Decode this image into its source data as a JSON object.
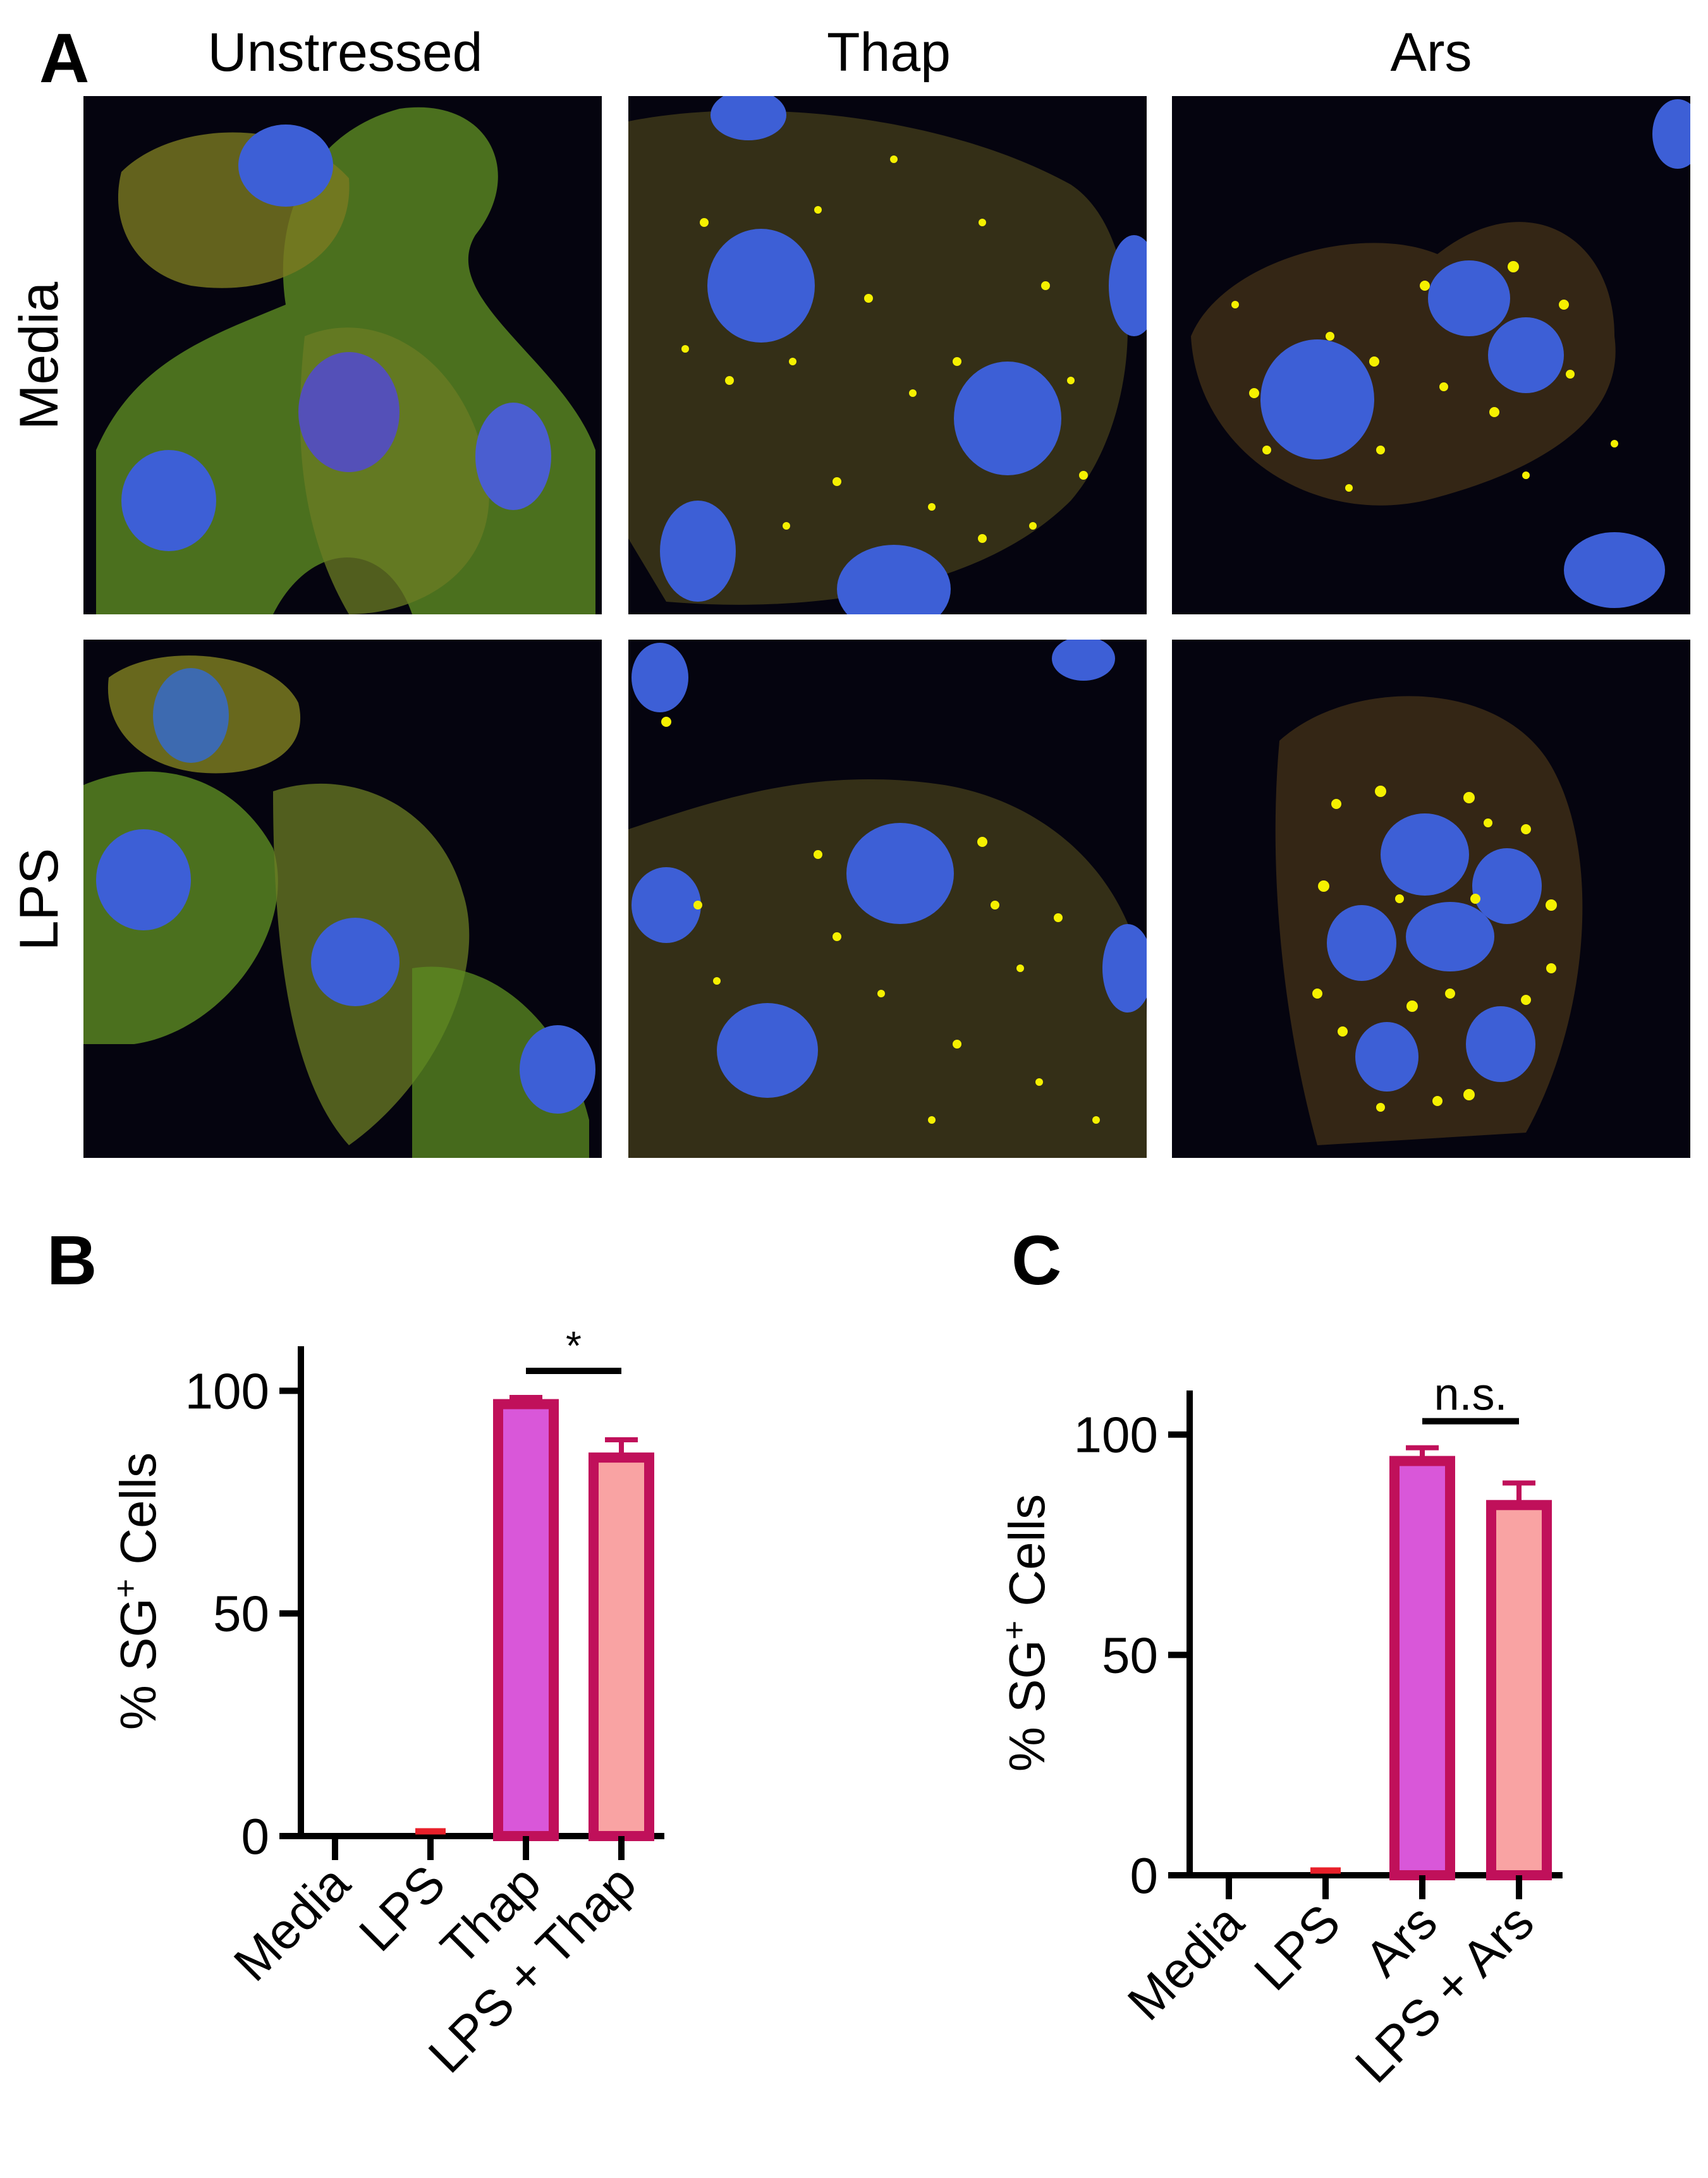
{
  "panel_a": {
    "letter": "A",
    "columns": [
      "Unstressed",
      "Thap",
      "Ars"
    ],
    "rows": [
      "Media",
      "LPS"
    ]
  },
  "panel_b": {
    "letter": "B"
  },
  "panel_c": {
    "letter": "C"
  },
  "colors": {
    "bar_pos": "#d957d9",
    "bar_lps": "#f9a3a3",
    "bar_edge": "#c0105a",
    "nucleus": "#3d5fd6",
    "cytoplasm_green": "#6fa62a",
    "granule_yellow": "#f5f000"
  },
  "chart_data": [
    {
      "type": "bar",
      "categories": [
        "Media",
        "LPS",
        "Thap",
        "LPS + Thap"
      ],
      "values": [
        0,
        0.5,
        97,
        85
      ],
      "errors": [
        0,
        0,
        1.5,
        4
      ],
      "ylabel": "% SG+ Cells",
      "ylim": [
        0,
        110
      ],
      "yticks": [
        "0",
        "50",
        "100"
      ],
      "significance": {
        "between": [
          "Thap",
          "LPS + Thap"
        ],
        "label": "*"
      },
      "grid": false
    },
    {
      "type": "bar",
      "categories": [
        "Media",
        "LPS",
        "Ars",
        "LPS + Ars"
      ],
      "values": [
        0,
        0.5,
        94,
        84
      ],
      "errors": [
        0,
        0,
        3,
        5
      ],
      "ylabel": "% SG+ Cells",
      "ylim": [
        0,
        110
      ],
      "yticks": [
        "0",
        "50",
        "100"
      ],
      "significance": {
        "between": [
          "Ars",
          "LPS + Ars"
        ],
        "label": "n.s."
      },
      "grid": false
    }
  ]
}
